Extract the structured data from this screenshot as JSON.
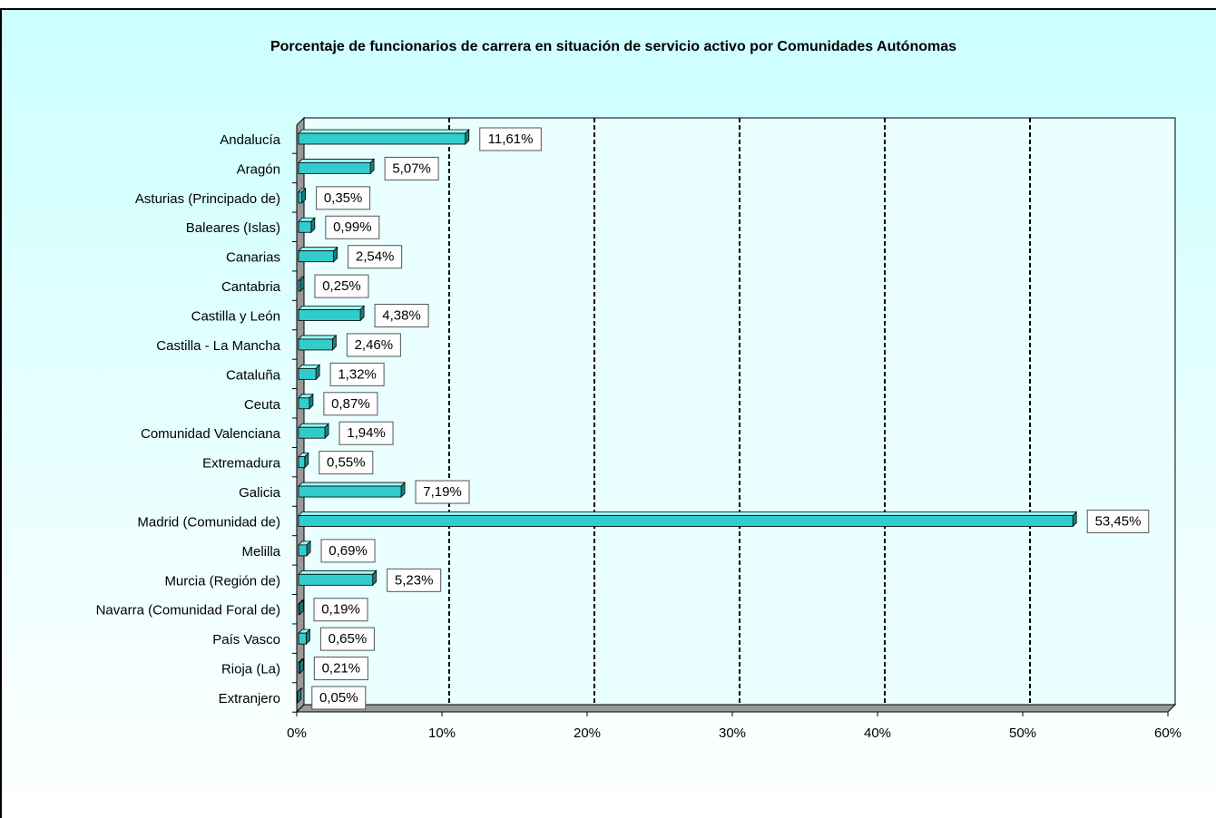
{
  "chart_data": {
    "type": "bar",
    "orientation": "horizontal",
    "title": "Porcentaje de funcionarios de carrera en situación de servicio activo por Comunidades Autónomas",
    "categories": [
      "Andalucía",
      "Aragón",
      "Asturias (Principado de)",
      "Baleares (Islas)",
      "Canarias",
      "Cantabria",
      "Castilla y León",
      "Castilla - La Mancha",
      "Cataluña",
      "Ceuta",
      "Comunidad Valenciana",
      "Extremadura",
      "Galicia",
      "Madrid (Comunidad de)",
      "Melilla",
      "Murcia (Región de)",
      "Navarra (Comunidad Foral de)",
      "País Vasco",
      "Rioja (La)",
      "Extranjero"
    ],
    "values": [
      11.61,
      5.07,
      0.35,
      0.99,
      2.54,
      0.25,
      4.38,
      2.46,
      1.32,
      0.87,
      1.94,
      0.55,
      7.19,
      53.45,
      0.69,
      5.23,
      0.19,
      0.65,
      0.21,
      0.05
    ],
    "value_labels": [
      "11,61%",
      "5,07%",
      "0,35%",
      "0,99%",
      "2,54%",
      "0,25%",
      "4,38%",
      "2,46%",
      "1,32%",
      "0,87%",
      "1,94%",
      "0,55%",
      "7,19%",
      "53,45%",
      "0,69%",
      "5,23%",
      "0,19%",
      "0,65%",
      "0,21%",
      "0,05%"
    ],
    "color": "#33cccc",
    "xlim": [
      0,
      60
    ],
    "xticks": [
      {
        "value": 0,
        "label": "0%"
      },
      {
        "value": 10,
        "label": "10%"
      },
      {
        "value": 20,
        "label": "20%"
      },
      {
        "value": 30,
        "label": "30%"
      },
      {
        "value": 40,
        "label": "40%"
      },
      {
        "value": 50,
        "label": "50%"
      },
      {
        "value": 60,
        "label": "60%"
      }
    ],
    "grid": true
  }
}
